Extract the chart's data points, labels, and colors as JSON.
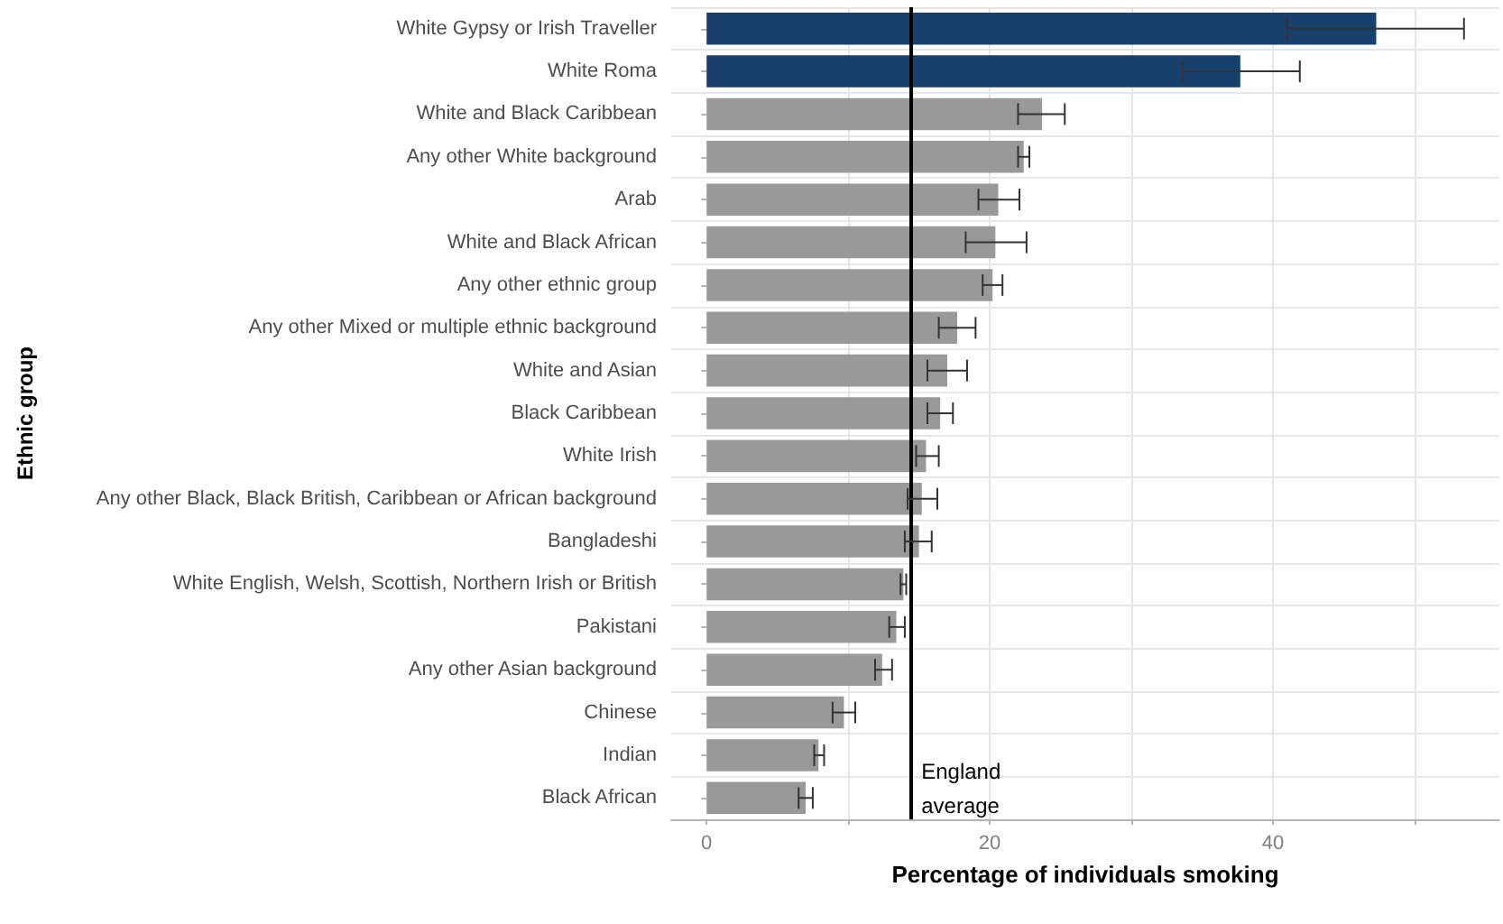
{
  "chart_data": {
    "type": "bar",
    "orientation": "horizontal",
    "xlabel": "Percentage of individuals smoking",
    "ylabel": "Ethnic group",
    "categories": [
      "White Gypsy or Irish Traveller",
      "White Roma",
      "White and Black Caribbean",
      "Any other White background",
      "Arab",
      "White and Black African",
      "Any other ethnic group",
      "Any other Mixed or multiple ethnic background",
      "White and Asian",
      "Black Caribbean",
      "White Irish",
      "Any other Black, Black British, Caribbean or African background",
      "Bangladeshi",
      "White English, Welsh, Scottish, Northern Irish or British",
      "Pakistani",
      "Any other Asian background",
      "Chinese",
      "Indian",
      "Black African"
    ],
    "values": [
      47.3,
      37.7,
      23.7,
      22.4,
      20.6,
      20.4,
      20.2,
      17.7,
      17.0,
      16.5,
      15.5,
      15.2,
      15.0,
      13.9,
      13.4,
      12.4,
      9.7,
      7.9,
      7.0
    ],
    "errors": [
      [
        41.0,
        53.5
      ],
      [
        33.6,
        41.9
      ],
      [
        22.0,
        25.3
      ],
      [
        22.0,
        22.8
      ],
      [
        19.2,
        22.1
      ],
      [
        18.3,
        22.6
      ],
      [
        19.5,
        20.9
      ],
      [
        16.4,
        19.0
      ],
      [
        15.6,
        18.4
      ],
      [
        15.6,
        17.4
      ],
      [
        14.8,
        16.4
      ],
      [
        14.2,
        16.3
      ],
      [
        14.0,
        15.9
      ],
      [
        13.7,
        14.1
      ],
      [
        12.9,
        14.0
      ],
      [
        11.9,
        13.1
      ],
      [
        8.9,
        10.5
      ],
      [
        7.6,
        8.3
      ],
      [
        6.5,
        7.5
      ]
    ],
    "colors": [
      "#17406d",
      "#17406d",
      "#999999",
      "#999999",
      "#999999",
      "#999999",
      "#999999",
      "#999999",
      "#999999",
      "#999999",
      "#999999",
      "#999999",
      "#999999",
      "#999999",
      "#999999",
      "#999999",
      "#999999",
      "#999999",
      "#999999"
    ],
    "xlim": [
      -2.5,
      56
    ],
    "xticks": [
      0,
      {
        "value": 10,
        "label": null
      },
      20,
      {
        "value": 30,
        "label": null
      },
      40,
      {
        "value": 50,
        "label": null
      }
    ],
    "ref_lines": [
      {
        "axis": "x",
        "value": 14.4,
        "label": "England average",
        "color": "#000000"
      }
    ],
    "grid": true
  }
}
